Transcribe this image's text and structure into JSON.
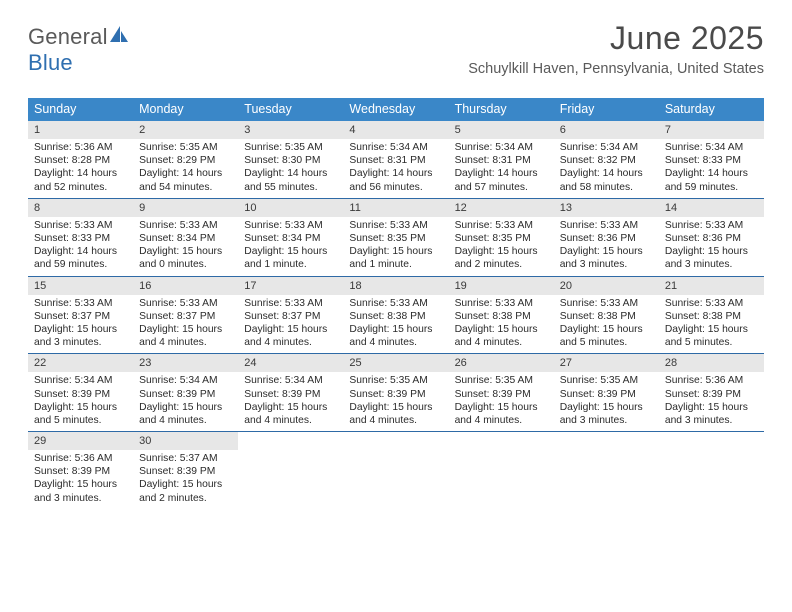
{
  "brand": {
    "word1": "General",
    "word2": "Blue"
  },
  "title": "June 2025",
  "location": "Schuylkill Haven, Pennsylvania, United States",
  "colors": {
    "header_bg": "#3a87c8",
    "header_text": "#ffffff",
    "week_divider": "#2e6aa6",
    "daynum_bg": "#e7e7e7",
    "text": "#2b2b2b",
    "title_text": "#4a4a4a",
    "location_text": "#5a5a5a",
    "logo_gray": "#5a5a5a",
    "logo_blue": "#2f6fb0"
  },
  "day_names": [
    "Sunday",
    "Monday",
    "Tuesday",
    "Wednesday",
    "Thursday",
    "Friday",
    "Saturday"
  ],
  "weeks": [
    [
      {
        "n": "1",
        "sunrise": "Sunrise: 5:36 AM",
        "sunset": "Sunset: 8:28 PM",
        "daylight": "Daylight: 14 hours and 52 minutes."
      },
      {
        "n": "2",
        "sunrise": "Sunrise: 5:35 AM",
        "sunset": "Sunset: 8:29 PM",
        "daylight": "Daylight: 14 hours and 54 minutes."
      },
      {
        "n": "3",
        "sunrise": "Sunrise: 5:35 AM",
        "sunset": "Sunset: 8:30 PM",
        "daylight": "Daylight: 14 hours and 55 minutes."
      },
      {
        "n": "4",
        "sunrise": "Sunrise: 5:34 AM",
        "sunset": "Sunset: 8:31 PM",
        "daylight": "Daylight: 14 hours and 56 minutes."
      },
      {
        "n": "5",
        "sunrise": "Sunrise: 5:34 AM",
        "sunset": "Sunset: 8:31 PM",
        "daylight": "Daylight: 14 hours and 57 minutes."
      },
      {
        "n": "6",
        "sunrise": "Sunrise: 5:34 AM",
        "sunset": "Sunset: 8:32 PM",
        "daylight": "Daylight: 14 hours and 58 minutes."
      },
      {
        "n": "7",
        "sunrise": "Sunrise: 5:34 AM",
        "sunset": "Sunset: 8:33 PM",
        "daylight": "Daylight: 14 hours and 59 minutes."
      }
    ],
    [
      {
        "n": "8",
        "sunrise": "Sunrise: 5:33 AM",
        "sunset": "Sunset: 8:33 PM",
        "daylight": "Daylight: 14 hours and 59 minutes."
      },
      {
        "n": "9",
        "sunrise": "Sunrise: 5:33 AM",
        "sunset": "Sunset: 8:34 PM",
        "daylight": "Daylight: 15 hours and 0 minutes."
      },
      {
        "n": "10",
        "sunrise": "Sunrise: 5:33 AM",
        "sunset": "Sunset: 8:34 PM",
        "daylight": "Daylight: 15 hours and 1 minute."
      },
      {
        "n": "11",
        "sunrise": "Sunrise: 5:33 AM",
        "sunset": "Sunset: 8:35 PM",
        "daylight": "Daylight: 15 hours and 1 minute."
      },
      {
        "n": "12",
        "sunrise": "Sunrise: 5:33 AM",
        "sunset": "Sunset: 8:35 PM",
        "daylight": "Daylight: 15 hours and 2 minutes."
      },
      {
        "n": "13",
        "sunrise": "Sunrise: 5:33 AM",
        "sunset": "Sunset: 8:36 PM",
        "daylight": "Daylight: 15 hours and 3 minutes."
      },
      {
        "n": "14",
        "sunrise": "Sunrise: 5:33 AM",
        "sunset": "Sunset: 8:36 PM",
        "daylight": "Daylight: 15 hours and 3 minutes."
      }
    ],
    [
      {
        "n": "15",
        "sunrise": "Sunrise: 5:33 AM",
        "sunset": "Sunset: 8:37 PM",
        "daylight": "Daylight: 15 hours and 3 minutes."
      },
      {
        "n": "16",
        "sunrise": "Sunrise: 5:33 AM",
        "sunset": "Sunset: 8:37 PM",
        "daylight": "Daylight: 15 hours and 4 minutes."
      },
      {
        "n": "17",
        "sunrise": "Sunrise: 5:33 AM",
        "sunset": "Sunset: 8:37 PM",
        "daylight": "Daylight: 15 hours and 4 minutes."
      },
      {
        "n": "18",
        "sunrise": "Sunrise: 5:33 AM",
        "sunset": "Sunset: 8:38 PM",
        "daylight": "Daylight: 15 hours and 4 minutes."
      },
      {
        "n": "19",
        "sunrise": "Sunrise: 5:33 AM",
        "sunset": "Sunset: 8:38 PM",
        "daylight": "Daylight: 15 hours and 4 minutes."
      },
      {
        "n": "20",
        "sunrise": "Sunrise: 5:33 AM",
        "sunset": "Sunset: 8:38 PM",
        "daylight": "Daylight: 15 hours and 5 minutes."
      },
      {
        "n": "21",
        "sunrise": "Sunrise: 5:33 AM",
        "sunset": "Sunset: 8:38 PM",
        "daylight": "Daylight: 15 hours and 5 minutes."
      }
    ],
    [
      {
        "n": "22",
        "sunrise": "Sunrise: 5:34 AM",
        "sunset": "Sunset: 8:39 PM",
        "daylight": "Daylight: 15 hours and 5 minutes."
      },
      {
        "n": "23",
        "sunrise": "Sunrise: 5:34 AM",
        "sunset": "Sunset: 8:39 PM",
        "daylight": "Daylight: 15 hours and 4 minutes."
      },
      {
        "n": "24",
        "sunrise": "Sunrise: 5:34 AM",
        "sunset": "Sunset: 8:39 PM",
        "daylight": "Daylight: 15 hours and 4 minutes."
      },
      {
        "n": "25",
        "sunrise": "Sunrise: 5:35 AM",
        "sunset": "Sunset: 8:39 PM",
        "daylight": "Daylight: 15 hours and 4 minutes."
      },
      {
        "n": "26",
        "sunrise": "Sunrise: 5:35 AM",
        "sunset": "Sunset: 8:39 PM",
        "daylight": "Daylight: 15 hours and 4 minutes."
      },
      {
        "n": "27",
        "sunrise": "Sunrise: 5:35 AM",
        "sunset": "Sunset: 8:39 PM",
        "daylight": "Daylight: 15 hours and 3 minutes."
      },
      {
        "n": "28",
        "sunrise": "Sunrise: 5:36 AM",
        "sunset": "Sunset: 8:39 PM",
        "daylight": "Daylight: 15 hours and 3 minutes."
      }
    ],
    [
      {
        "n": "29",
        "sunrise": "Sunrise: 5:36 AM",
        "sunset": "Sunset: 8:39 PM",
        "daylight": "Daylight: 15 hours and 3 minutes."
      },
      {
        "n": "30",
        "sunrise": "Sunrise: 5:37 AM",
        "sunset": "Sunset: 8:39 PM",
        "daylight": "Daylight: 15 hours and 2 minutes."
      },
      null,
      null,
      null,
      null,
      null
    ]
  ]
}
